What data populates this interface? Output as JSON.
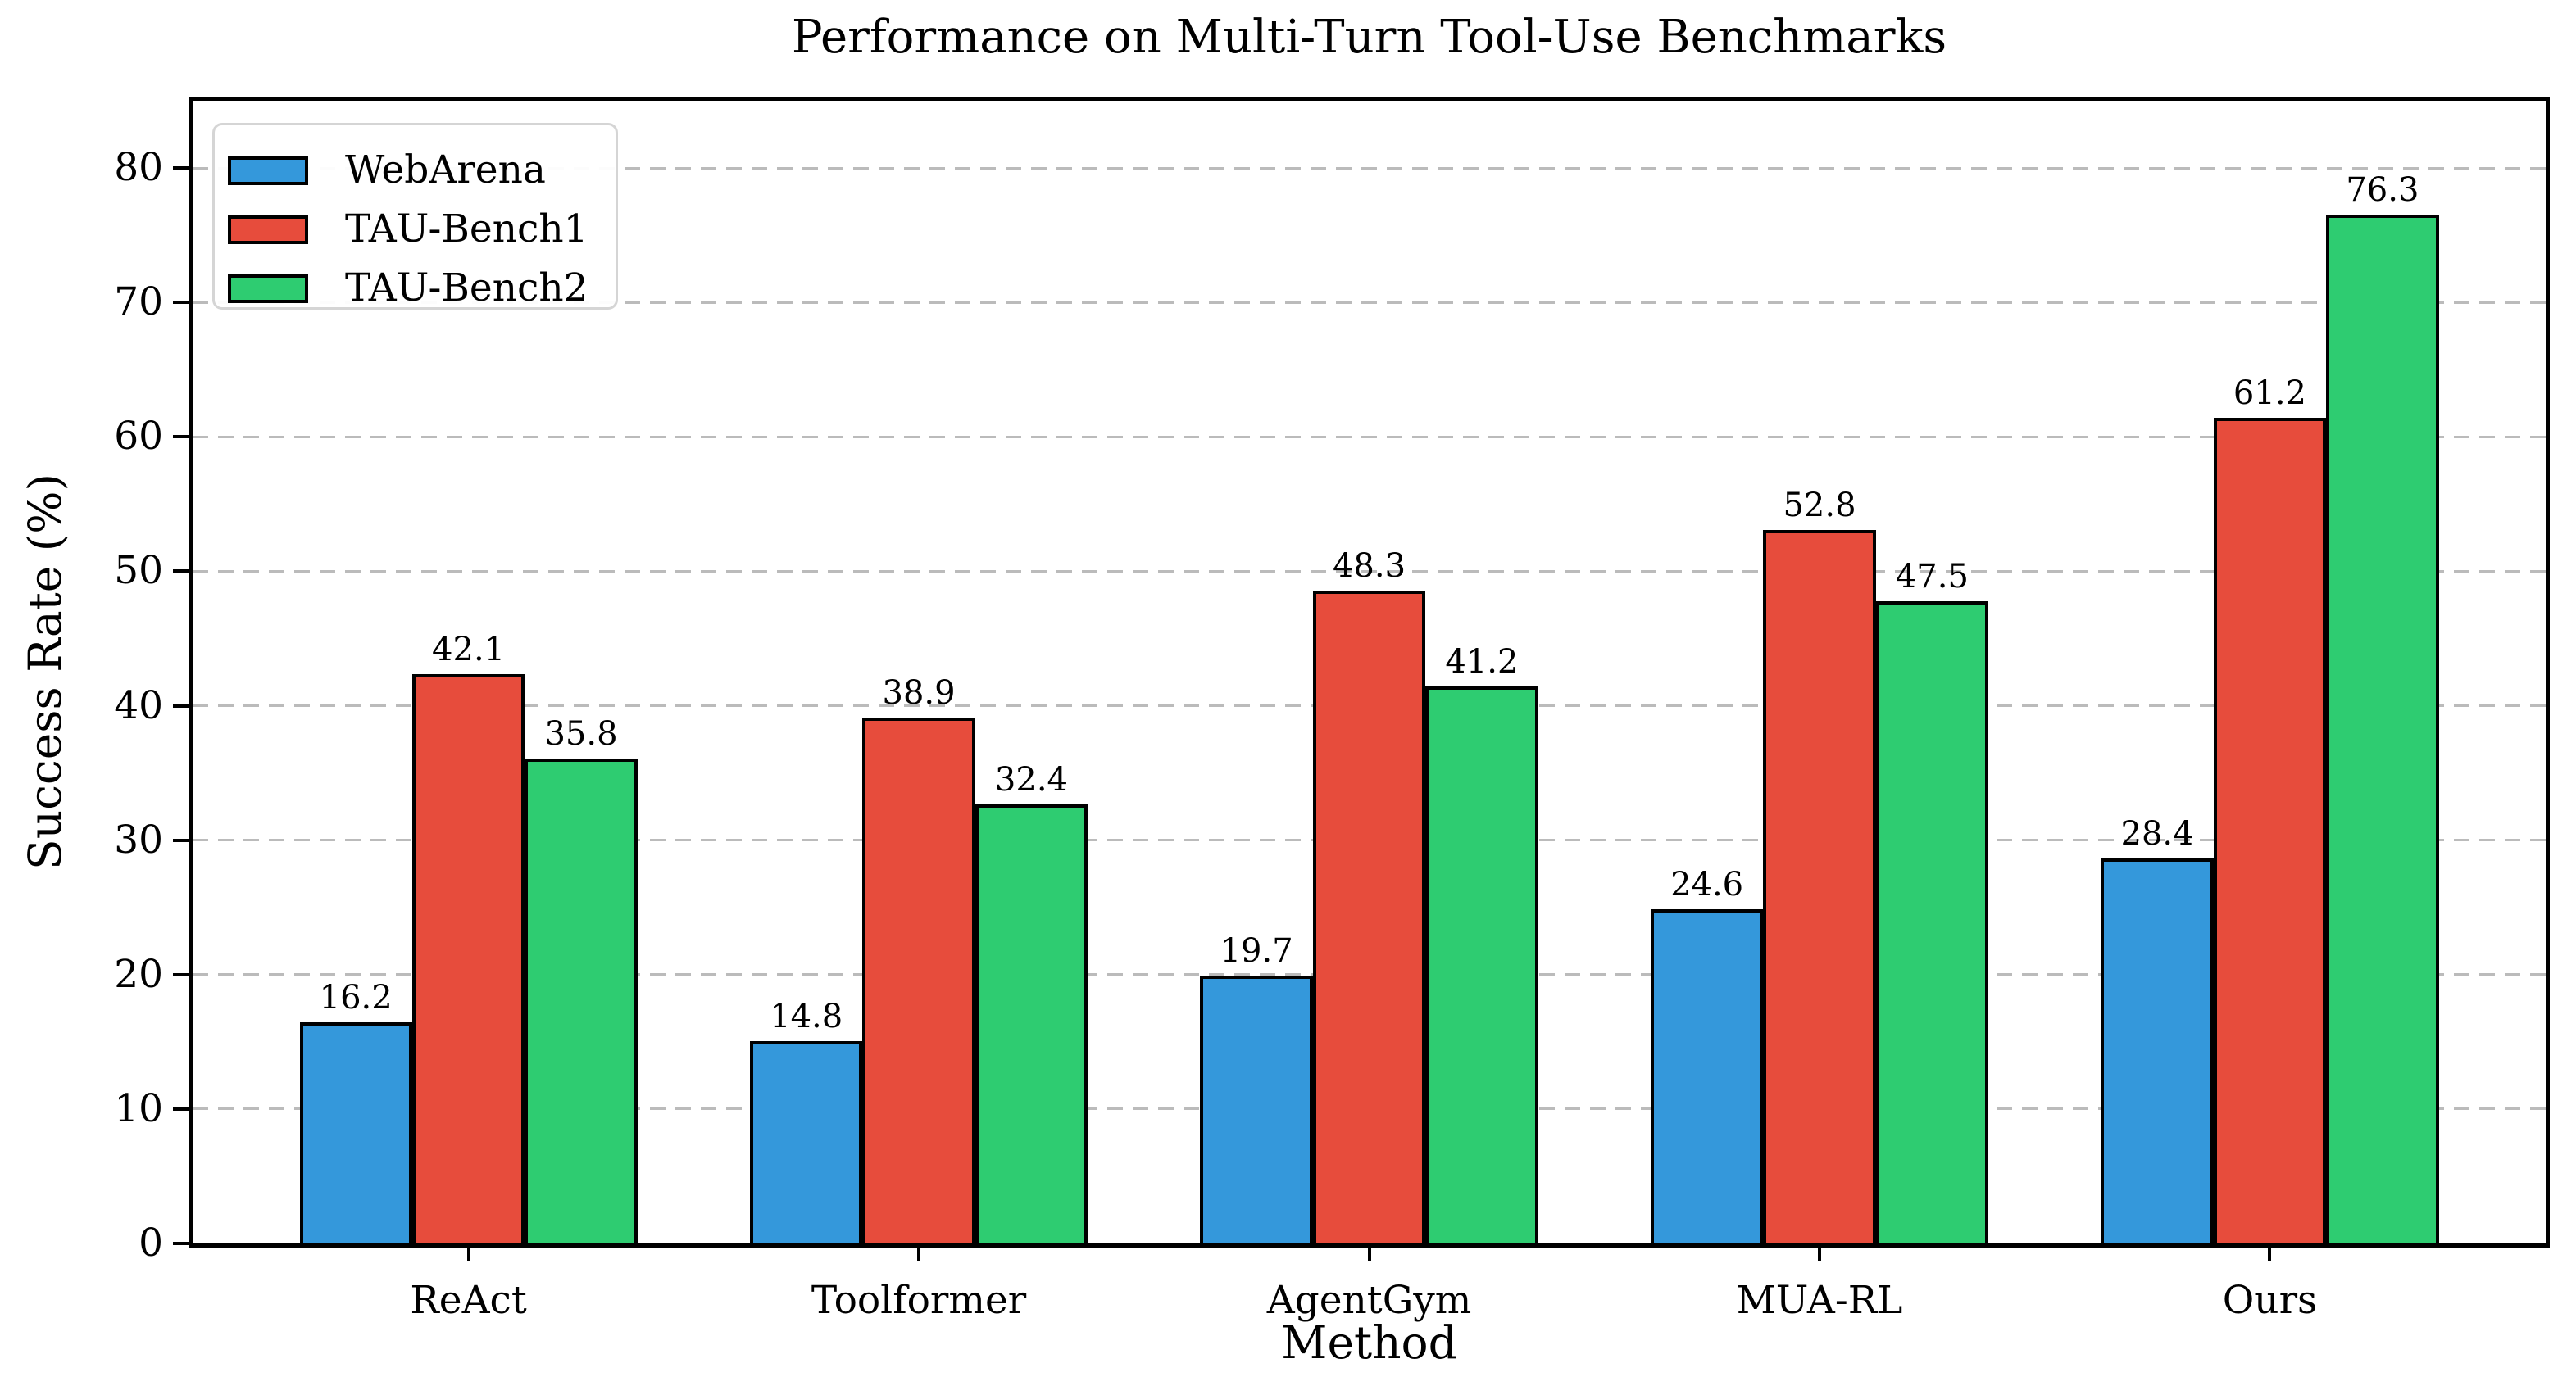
{
  "chart_data": {
    "type": "bar",
    "title": "Performance on Multi-Turn Tool-Use Benchmarks",
    "xlabel": "Method",
    "ylabel": "Success Rate (%)",
    "categories": [
      "ReAct",
      "Toolformer",
      "AgentGym",
      "MUA-RL",
      "Ours"
    ],
    "series": [
      {
        "name": "WebArena",
        "color": "#3498db",
        "values": [
          16.2,
          14.8,
          19.7,
          24.6,
          28.4
        ]
      },
      {
        "name": "TAU-Bench1",
        "color": "#e74c3c",
        "values": [
          42.1,
          38.9,
          48.3,
          52.8,
          61.2
        ]
      },
      {
        "name": "TAU-Bench2",
        "color": "#2ecc71",
        "values": [
          35.8,
          32.4,
          41.2,
          47.5,
          76.3
        ]
      }
    ],
    "ylim": [
      0,
      85
    ],
    "yticks": [
      0,
      10,
      20,
      30,
      40,
      50,
      60,
      70,
      80
    ],
    "grid": "horizontal-dashed",
    "grid_color": "#bbbbbb",
    "bar_edge_color": "#000000",
    "text_color": "#000000",
    "background_color": "#ffffff",
    "legend_position": "upper-left",
    "value_labels_shown": true
  }
}
